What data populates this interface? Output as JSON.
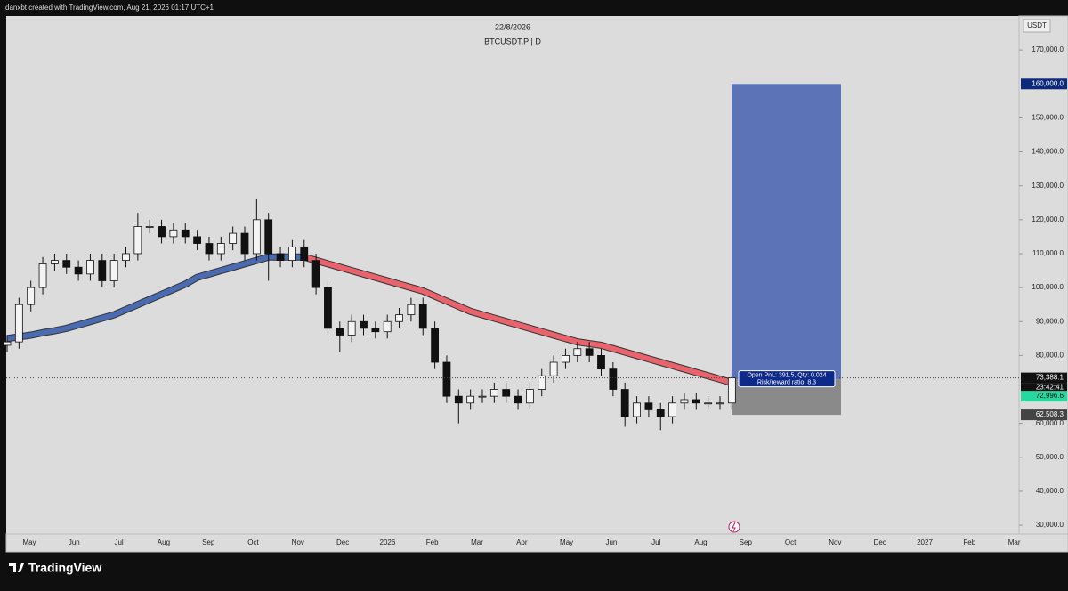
{
  "header": {
    "credit": "danxbt created with TradingView.com, Aug 21, 2026 01:17 UTC+1"
  },
  "footer": {
    "brand": "TradingView"
  },
  "chart_data": {
    "type": "candlestick",
    "title": "22/8/2026",
    "subtitle": "BTCUSDT.P | D",
    "currency": "USDT",
    "xticks": [
      "May",
      "Jun",
      "Jul",
      "Aug",
      "Sep",
      "Oct",
      "Nov",
      "Dec",
      "2026",
      "Feb",
      "Mar",
      "Apr",
      "May",
      "Jun",
      "Jul",
      "Aug",
      "Sep",
      "Oct",
      "Nov",
      "Dec",
      "2027",
      "Feb",
      "Mar"
    ],
    "ylim": [
      27400,
      180000
    ],
    "yticks": [
      {
        "value": 30000,
        "label": "30,000.0"
      },
      {
        "value": 40000,
        "label": "40,000.0"
      },
      {
        "value": 50000,
        "label": "50,000.0"
      },
      {
        "value": 60000,
        "label": "60,000.0"
      },
      {
        "value": 80000,
        "label": "80,000.0"
      },
      {
        "value": 90000,
        "label": "90,000.0"
      },
      {
        "value": 100000,
        "label": "100,000.0"
      },
      {
        "value": 110000,
        "label": "110,000.0"
      },
      {
        "value": 120000,
        "label": "120,000.0"
      },
      {
        "value": 130000,
        "label": "130,000.0"
      },
      {
        "value": 140000,
        "label": "140,000.0"
      },
      {
        "value": 150000,
        "label": "150,000.0"
      },
      {
        "value": 170000,
        "label": "170,000.0"
      }
    ],
    "up_color": "#f4f4f4",
    "down_color": "#111111",
    "open": [
      83000,
      84000,
      95000,
      100000,
      107000,
      108000,
      106000,
      104000,
      108000,
      102000,
      108000,
      110000,
      118000,
      118000,
      115000,
      117000,
      115000,
      113000,
      110000,
      113000,
      116000,
      110000,
      120000,
      110000,
      108000,
      112000,
      108000,
      100000,
      88000,
      86000,
      90000,
      88000,
      87000,
      90000,
      92000,
      95000,
      88000,
      78000,
      68000,
      66000,
      68000,
      68000,
      70000,
      68000,
      66000,
      70000,
      74000,
      78000,
      80000,
      82000,
      80000,
      76000,
      70000,
      62000,
      66000,
      64000,
      62000,
      66000,
      67000,
      66000,
      66000,
      66000
    ],
    "high": [
      86000,
      97000,
      102000,
      109000,
      110000,
      110000,
      108000,
      110000,
      110000,
      110000,
      112000,
      122000,
      120000,
      120000,
      119000,
      119000,
      117000,
      115000,
      115000,
      118000,
      118000,
      126000,
      122000,
      112000,
      114000,
      114000,
      110000,
      102000,
      90000,
      92000,
      92000,
      90000,
      92000,
      94000,
      97000,
      97000,
      90000,
      80000,
      70000,
      70000,
      70000,
      72000,
      72000,
      70000,
      72000,
      76000,
      80000,
      82000,
      84000,
      84000,
      82000,
      78000,
      72000,
      68000,
      68000,
      66000,
      68000,
      69000,
      69000,
      68000,
      68000,
      74000
    ],
    "low": [
      81000,
      82000,
      93000,
      98000,
      105000,
      104000,
      102000,
      102000,
      100000,
      100000,
      106000,
      108000,
      116000,
      113000,
      113000,
      113000,
      111000,
      108000,
      108000,
      111000,
      108000,
      108000,
      102000,
      106000,
      106000,
      106000,
      98000,
      86000,
      81000,
      84000,
      86000,
      85000,
      85000,
      88000,
      90000,
      86000,
      76000,
      66000,
      60000,
      64000,
      66000,
      66000,
      66000,
      64000,
      64000,
      68000,
      72000,
      76000,
      78000,
      78000,
      74000,
      68000,
      59000,
      60000,
      62000,
      58000,
      60000,
      64000,
      64000,
      64000,
      64000,
      64000
    ],
    "close": [
      84000,
      95000,
      100000,
      107000,
      108000,
      106000,
      104000,
      108000,
      102000,
      108000,
      110000,
      118000,
      118000,
      115000,
      117000,
      115000,
      113000,
      110000,
      113000,
      116000,
      110000,
      120000,
      110000,
      108000,
      112000,
      108000,
      100000,
      88000,
      86000,
      90000,
      88000,
      87000,
      90000,
      92000,
      95000,
      88000,
      78000,
      68000,
      66000,
      68000,
      68000,
      70000,
      68000,
      66000,
      70000,
      74000,
      78000,
      80000,
      82000,
      80000,
      76000,
      70000,
      62000,
      66000,
      64000,
      62000,
      66000,
      67000,
      66000,
      66000,
      66000,
      73388.1
    ],
    "series": [
      {
        "color": "#4a6bb0",
        "values": [
          85000,
          85500,
          86000,
          86700,
          87300,
          88000,
          89000,
          90000,
          91000,
          92000,
          93500,
          95000,
          96500,
          98000,
          99500,
          101000,
          103000,
          104000,
          105000,
          106000,
          107000,
          108000,
          109000,
          109000,
          109000,
          109000,
          null,
          null,
          null,
          null,
          null,
          null,
          null,
          null,
          null,
          null,
          null,
          null,
          null,
          null,
          null,
          null,
          null,
          null,
          null,
          null,
          null,
          null,
          null,
          null,
          null,
          null,
          null,
          null,
          null,
          null,
          null,
          null,
          null,
          null,
          null,
          null
        ]
      },
      {
        "color": "#e8636c",
        "values": [
          null,
          null,
          null,
          null,
          null,
          null,
          null,
          null,
          null,
          null,
          null,
          null,
          null,
          null,
          null,
          null,
          null,
          null,
          null,
          null,
          null,
          null,
          null,
          null,
          null,
          109000,
          108000,
          107000,
          106000,
          105000,
          104000,
          103000,
          102000,
          101000,
          100000,
          99000,
          97500,
          96000,
          94500,
          93000,
          92000,
          91000,
          90000,
          89000,
          88000,
          87000,
          86000,
          85000,
          84000,
          83500,
          83000,
          82000,
          81000,
          80000,
          79000,
          78000,
          77000,
          76000,
          75000,
          74000,
          73000,
          72000
        ]
      }
    ],
    "last_price": {
      "value": 73388.1,
      "label": "73,388.1",
      "countdown": "23:42:41"
    },
    "position": {
      "entry": 72996.6,
      "entry_label": "72,996.6",
      "target": 160000,
      "target_label": "160,000.0",
      "stop": 62508.3,
      "stop_label": "62,508.3",
      "target_color": "#5c73b8",
      "stop_color": "#8a8a8a",
      "pnl_text": "Open PnL: 391.5, Qty: 0.024",
      "rr_text": "Risk/reward ratio: 8.3"
    }
  }
}
